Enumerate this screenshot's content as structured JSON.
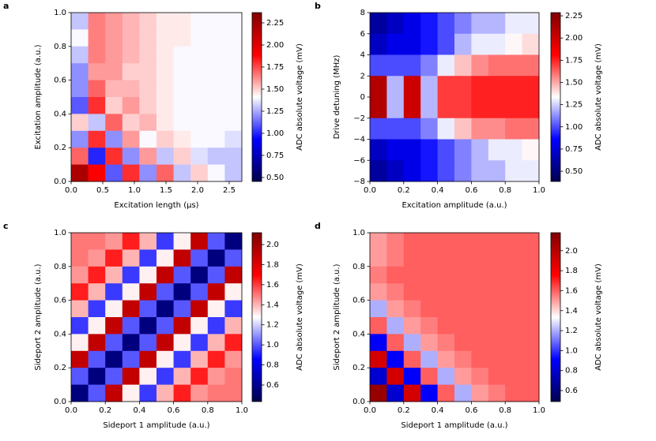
{
  "chart_data": [
    {
      "type": "heatmap",
      "panel_label": "a",
      "cmap": "seismic",
      "x_label": "Excitation length (μs)",
      "y_label": "Excitation amplitude (a.u.)",
      "colorbar_label": "ADC absolute voltage (mV)",
      "xlim": [
        0,
        2.7
      ],
      "ylim": [
        0,
        1
      ],
      "zlim": [
        0.455,
        2.366
      ],
      "xticks": [
        {
          "value": 0,
          "label": "0.0"
        },
        {
          "value": 0.5,
          "label": "0.5"
        },
        {
          "value": 1,
          "label": "1.0"
        },
        {
          "value": 1.5,
          "label": "1.5"
        },
        {
          "value": 2,
          "label": "2.0"
        },
        {
          "value": 2.5,
          "label": "2.5"
        }
      ],
      "yticks": [
        {
          "value": 0,
          "label": "0.0"
        },
        {
          "value": 0.2,
          "label": "0.2"
        },
        {
          "value": 0.4,
          "label": "0.4"
        },
        {
          "value": 0.6,
          "label": "0.6"
        },
        {
          "value": 0.8,
          "label": "0.8"
        },
        {
          "value": 1,
          "label": "1.0"
        }
      ],
      "zticks": [
        {
          "value": 0.5,
          "label": "0.50"
        },
        {
          "value": 0.75,
          "label": "0.75"
        },
        {
          "value": 1,
          "label": "1.00"
        },
        {
          "value": 1.25,
          "label": "1.25"
        },
        {
          "value": 1.5,
          "label": "1.50"
        },
        {
          "value": 1.75,
          "label": "1.75"
        },
        {
          "value": 2,
          "label": "2.00"
        },
        {
          "value": 2.25,
          "label": "2.25"
        }
      ],
      "z": [
        [
          1.3,
          1.65,
          1.6,
          1.55,
          1.5,
          1.45,
          1.45,
          1.4,
          1.4,
          1.4
        ],
        [
          1.4,
          1.65,
          1.6,
          1.55,
          1.5,
          1.45,
          1.45,
          1.4,
          1.4,
          1.4
        ],
        [
          1.3,
          1.65,
          1.6,
          1.55,
          1.5,
          1.45,
          1.4,
          1.4,
          1.4,
          1.4
        ],
        [
          1.2,
          1.6,
          1.6,
          1.5,
          1.5,
          1.45,
          1.4,
          1.4,
          1.4,
          1.4
        ],
        [
          1.2,
          1.7,
          1.55,
          1.55,
          1.5,
          1.45,
          1.4,
          1.4,
          1.4,
          1.4
        ],
        [
          1.1,
          1.8,
          1.5,
          1.6,
          1.5,
          1.45,
          1.4,
          1.4,
          1.4,
          1.4
        ],
        [
          1.5,
          1.3,
          1.7,
          1.5,
          1.55,
          1.45,
          1.4,
          1.4,
          1.4,
          1.4
        ],
        [
          1.2,
          1.8,
          1.2,
          1.6,
          1.4,
          1.5,
          1.45,
          1.4,
          1.4,
          1.35
        ],
        [
          1.7,
          1.0,
          1.8,
          1.2,
          1.6,
          1.3,
          1.5,
          1.35,
          1.3,
          1.3
        ],
        [
          2.2,
          1.9,
          1.1,
          1.8,
          1.2,
          1.7,
          1.3,
          1.5,
          1.4,
          1.3
        ]
      ]
    },
    {
      "type": "heatmap",
      "panel_label": "b",
      "cmap": "seismic",
      "x_label": "Excitation amplitude (a.u.)",
      "y_label": "Drive detuning (MHz)",
      "colorbar_label": "ADC absolute voltage (mV)",
      "xlim": [
        0,
        1
      ],
      "ylim": [
        -8,
        8
      ],
      "zlim": [
        0.385,
        2.286
      ],
      "xticks": [
        {
          "value": 0,
          "label": "0.0"
        },
        {
          "value": 0.2,
          "label": "0.2"
        },
        {
          "value": 0.4,
          "label": "0.4"
        },
        {
          "value": 0.6,
          "label": "0.6"
        },
        {
          "value": 0.8,
          "label": "0.8"
        },
        {
          "value": 1,
          "label": "1.0"
        }
      ],
      "yticks": [
        {
          "value": -8,
          "label": "−8"
        },
        {
          "value": -6,
          "label": "−6"
        },
        {
          "value": -4,
          "label": "−4"
        },
        {
          "value": -2,
          "label": "−2"
        },
        0,
        2,
        4,
        6,
        8
      ],
      "zticks": [
        {
          "value": 0.5,
          "label": "0.50"
        },
        {
          "value": 0.75,
          "label": "0.75"
        },
        {
          "value": 1,
          "label": "1.00"
        },
        {
          "value": 1.25,
          "label": "1.25"
        },
        {
          "value": 1.5,
          "label": "1.50"
        },
        {
          "value": 1.75,
          "label": "1.75"
        },
        {
          "value": 2,
          "label": "2.00"
        },
        {
          "value": 2.25,
          "label": "2.25"
        }
      ],
      "z": [
        [
          0.6,
          0.7,
          0.8,
          0.9,
          1.0,
          1.1,
          1.2,
          1.2,
          1.3,
          1.3
        ],
        [
          0.7,
          0.8,
          0.8,
          0.9,
          1.0,
          1.2,
          1.3,
          1.3,
          1.35,
          1.4
        ],
        [
          1.0,
          1.0,
          1.0,
          1.1,
          1.3,
          1.45,
          1.55,
          1.6,
          1.6,
          1.6
        ],
        [
          2.1,
          1.2,
          2.0,
          1.2,
          1.7,
          1.7,
          1.75,
          1.75,
          1.75,
          1.75
        ],
        [
          2.1,
          1.2,
          2.0,
          1.2,
          1.7,
          1.7,
          1.75,
          1.75,
          1.75,
          1.75
        ],
        [
          1.0,
          1.0,
          1.0,
          1.1,
          1.3,
          1.45,
          1.55,
          1.55,
          1.6,
          1.6
        ],
        [
          0.7,
          0.8,
          0.8,
          0.9,
          1.0,
          1.1,
          1.2,
          1.3,
          1.3,
          1.35
        ],
        [
          0.6,
          0.7,
          0.8,
          0.9,
          1.0,
          1.1,
          1.2,
          1.2,
          1.3,
          1.3
        ]
      ]
    },
    {
      "type": "heatmap",
      "panel_label": "c",
      "cmap": "seismic",
      "x_label": "Sideport 1 amplitude (a.u.)",
      "y_label": "Sideport 2 amplitude (a.u.)",
      "colorbar_label": "ADC absolute voltage (mV)",
      "xlim": [
        0,
        1
      ],
      "ylim": [
        0,
        1
      ],
      "zlim": [
        0.435,
        2.118
      ],
      "xticks": [
        {
          "value": 0,
          "label": "0.0"
        },
        {
          "value": 0.2,
          "label": "0.2"
        },
        {
          "value": 0.4,
          "label": "0.4"
        },
        {
          "value": 0.6,
          "label": "0.6"
        },
        {
          "value": 0.8,
          "label": "0.8"
        },
        {
          "value": 1,
          "label": "1.0"
        }
      ],
      "yticks": [
        {
          "value": 0,
          "label": "0.0"
        },
        {
          "value": 0.2,
          "label": "0.2"
        },
        {
          "value": 0.4,
          "label": "0.4"
        },
        {
          "value": 0.6,
          "label": "0.6"
        },
        {
          "value": 0.8,
          "label": "0.8"
        },
        {
          "value": 1,
          "label": "1.0"
        }
      ],
      "zticks": [
        0.6,
        0.8,
        {
          "value": 1,
          "label": "1.0"
        },
        1.2,
        1.4,
        1.6,
        1.8,
        {
          "value": 2,
          "label": "2.0"
        }
      ],
      "z": [
        [
          1.5,
          1.5,
          1.45,
          1.65,
          1.4,
          0.95,
          1.3,
          1.9,
          1.0,
          0.55
        ],
        [
          1.5,
          1.45,
          1.65,
          1.4,
          0.95,
          1.3,
          1.9,
          1.0,
          0.55,
          1.0
        ],
        [
          1.45,
          1.65,
          1.4,
          0.95,
          1.3,
          1.9,
          1.0,
          0.55,
          1.0,
          1.9
        ],
        [
          1.65,
          1.4,
          0.95,
          1.3,
          1.9,
          1.0,
          0.55,
          1.0,
          1.9,
          1.3
        ],
        [
          1.4,
          0.95,
          1.3,
          1.9,
          1.0,
          0.55,
          1.0,
          1.9,
          1.3,
          0.95
        ],
        [
          0.95,
          1.3,
          1.9,
          1.0,
          0.55,
          1.0,
          1.9,
          1.3,
          0.95,
          1.4
        ],
        [
          1.3,
          1.9,
          1.0,
          0.55,
          1.0,
          1.9,
          1.3,
          0.95,
          1.4,
          1.65
        ],
        [
          1.9,
          1.0,
          0.55,
          1.0,
          1.9,
          1.3,
          0.95,
          1.4,
          1.65,
          1.45
        ],
        [
          1.0,
          0.55,
          1.0,
          1.9,
          1.3,
          0.95,
          1.4,
          1.65,
          1.45,
          1.5
        ],
        [
          0.55,
          1.0,
          1.9,
          1.3,
          0.95,
          1.4,
          1.65,
          1.45,
          1.5,
          1.5
        ]
      ]
    },
    {
      "type": "heatmap",
      "panel_label": "d",
      "cmap": "seismic",
      "x_label": "Sideport 1 amplitude (a.u.)",
      "y_label": "Sideport 2 amplitude (a.u.)",
      "colorbar_label": "ADC absolute voltage (mV)",
      "xlim": [
        0,
        1
      ],
      "ylim": [
        0,
        1
      ],
      "zlim": [
        0.49,
        2.18
      ],
      "xticks": [
        {
          "value": 0,
          "label": "0.0"
        },
        {
          "value": 0.2,
          "label": "0.2"
        },
        {
          "value": 0.4,
          "label": "0.4"
        },
        {
          "value": 0.6,
          "label": "0.6"
        },
        {
          "value": 0.8,
          "label": "0.8"
        },
        {
          "value": 1,
          "label": "1.0"
        }
      ],
      "yticks": [
        {
          "value": 0,
          "label": "0.0"
        },
        {
          "value": 0.2,
          "label": "0.2"
        },
        {
          "value": 0.4,
          "label": "0.4"
        },
        {
          "value": 0.6,
          "label": "0.6"
        },
        {
          "value": 0.8,
          "label": "0.8"
        },
        {
          "value": 1,
          "label": "1.0"
        }
      ],
      "zticks": [
        0.6,
        0.8,
        {
          "value": 1,
          "label": "1.0"
        },
        1.2,
        1.4,
        1.6,
        1.8,
        {
          "value": 2,
          "label": "2.0"
        }
      ],
      "z": [
        [
          1.5,
          1.55,
          1.6,
          1.6,
          1.6,
          1.6,
          1.6,
          1.6,
          1.6,
          1.6
        ],
        [
          1.5,
          1.55,
          1.6,
          1.6,
          1.6,
          1.6,
          1.6,
          1.6,
          1.6,
          1.6
        ],
        [
          1.55,
          1.6,
          1.6,
          1.6,
          1.6,
          1.6,
          1.6,
          1.6,
          1.6,
          1.6
        ],
        [
          1.5,
          1.55,
          1.6,
          1.6,
          1.6,
          1.6,
          1.6,
          1.6,
          1.6,
          1.6
        ],
        [
          1.2,
          1.5,
          1.55,
          1.6,
          1.6,
          1.6,
          1.6,
          1.6,
          1.6,
          1.6
        ],
        [
          1.6,
          1.2,
          1.5,
          1.55,
          1.6,
          1.6,
          1.6,
          1.6,
          1.6,
          1.6
        ],
        [
          0.9,
          1.6,
          1.2,
          1.5,
          1.55,
          1.6,
          1.6,
          1.6,
          1.6,
          1.6
        ],
        [
          1.9,
          0.9,
          1.6,
          1.2,
          1.5,
          1.55,
          1.6,
          1.6,
          1.6,
          1.6
        ],
        [
          0.8,
          1.9,
          0.9,
          1.6,
          1.2,
          1.5,
          1.55,
          1.6,
          1.6,
          1.6
        ],
        [
          2.1,
          0.8,
          1.9,
          0.9,
          1.6,
          1.2,
          1.5,
          1.55,
          1.6,
          1.6
        ]
      ]
    }
  ]
}
